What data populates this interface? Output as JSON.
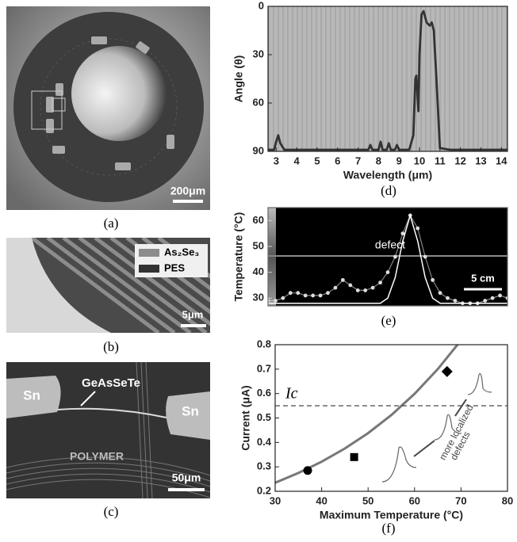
{
  "figure": {
    "panel_a": {
      "label": "(a)",
      "scale": "200μm"
    },
    "panel_b": {
      "label": "(b)",
      "legend": [
        "As₂Se₃",
        "PES"
      ],
      "scale": "5μm"
    },
    "panel_c": {
      "label": "(c)",
      "left": "Sn",
      "right": "Sn",
      "wire": "GeAsSeTe",
      "matrix": "POLYMER",
      "scale": "50μm"
    },
    "panel_d": {
      "label": "(d)"
    },
    "panel_e": {
      "label": "(e)"
    },
    "panel_f": {
      "label": "(f)"
    }
  },
  "chart_data": [
    {
      "type": "line",
      "x_label": "Wavelength (μm)",
      "y_label": "Angle (θ)",
      "xlim": [
        2.6,
        14.3
      ],
      "xticks": [
        3,
        4,
        5,
        6,
        7,
        8,
        9,
        10,
        11,
        12,
        13,
        14
      ],
      "ylim": [
        90,
        0
      ],
      "yticks": [
        0,
        30,
        60,
        90
      ],
      "series": [
        {
          "color": "#333333",
          "x": [
            2.6,
            2.9,
            3.0,
            3.1,
            3.2,
            3.4,
            4,
            5,
            6,
            7,
            7.5,
            7.6,
            7.7,
            8.0,
            8.1,
            8.2,
            8.4,
            8.5,
            8.6,
            8.8,
            8.9,
            9.0,
            9.5,
            9.7,
            9.8,
            9.85,
            9.95,
            10.0,
            10.1,
            10.2,
            10.35,
            10.5,
            10.6,
            10.7,
            10.85,
            11.0,
            11.5,
            12,
            13,
            14,
            14.3
          ],
          "values": [
            89,
            89,
            84,
            80,
            85,
            89,
            89,
            89,
            89,
            89,
            89,
            86,
            89,
            89,
            84,
            89,
            89,
            85,
            89,
            89,
            86,
            89,
            89,
            80,
            45,
            43,
            65,
            30,
            5,
            3,
            10,
            12,
            10,
            15,
            50,
            88,
            89,
            89,
            89,
            89,
            89
          ]
        }
      ]
    },
    {
      "type": "line",
      "y_label": "Temperature (°C)",
      "xlim": [
        0,
        32
      ],
      "ylim": [
        27,
        65
      ],
      "yticks": [
        30,
        40,
        50,
        60
      ],
      "annotations": [
        "defect",
        "5 cm"
      ],
      "series": [
        {
          "color": "#dddddd",
          "marker": "dot",
          "x": [
            0,
            1,
            2,
            3,
            4,
            5,
            6,
            7,
            8,
            9,
            10,
            11,
            12,
            13,
            14,
            15,
            16,
            17,
            18,
            19,
            20,
            21,
            22,
            23,
            24,
            25,
            26,
            27,
            28,
            29,
            30,
            31,
            32
          ],
          "values": [
            29,
            29,
            30,
            32,
            32,
            31,
            31,
            31,
            32,
            34,
            37,
            35,
            33,
            33,
            34,
            36,
            40,
            46,
            55,
            62,
            57,
            46,
            37,
            32,
            30,
            29,
            28,
            28,
            28,
            29,
            30,
            31,
            30
          ]
        },
        {
          "color": "#ffffff",
          "x": [
            0,
            2,
            4,
            6,
            8,
            10,
            12,
            14,
            15,
            16,
            17,
            18,
            19,
            20,
            21,
            22,
            23,
            24,
            26,
            28,
            30,
            32
          ],
          "values": [
            28,
            28,
            28,
            28,
            28,
            28,
            28,
            28,
            28,
            30,
            38,
            52,
            62,
            52,
            38,
            30,
            28,
            28,
            28,
            28,
            28,
            28
          ]
        }
      ]
    },
    {
      "type": "scatter",
      "x_label": "Maximum Temperature (°C)",
      "y_label": "Current (μA)",
      "xlim": [
        30,
        80
      ],
      "xticks": [
        30,
        40,
        50,
        60,
        70,
        80
      ],
      "ylim": [
        0.2,
        0.8
      ],
      "yticks": [
        0.2,
        0.3,
        0.4,
        0.5,
        0.6,
        0.7,
        0.8
      ],
      "threshold": {
        "value": 0.55,
        "label": "Ic"
      },
      "annotations": [
        "more localized",
        "defects"
      ],
      "series": [
        {
          "color": "#777777",
          "x": [
            30,
            35,
            40,
            45,
            50,
            55,
            60,
            65,
            70
          ],
          "values": [
            0.235,
            0.275,
            0.321,
            0.375,
            0.438,
            0.512,
            0.599,
            0.7,
            0.818
          ]
        },
        {
          "color": "#000000",
          "markers": [
            "circle",
            "square",
            "diamond"
          ],
          "x": [
            37,
            47,
            67
          ],
          "values": [
            0.285,
            0.34,
            0.69
          ]
        }
      ]
    }
  ]
}
